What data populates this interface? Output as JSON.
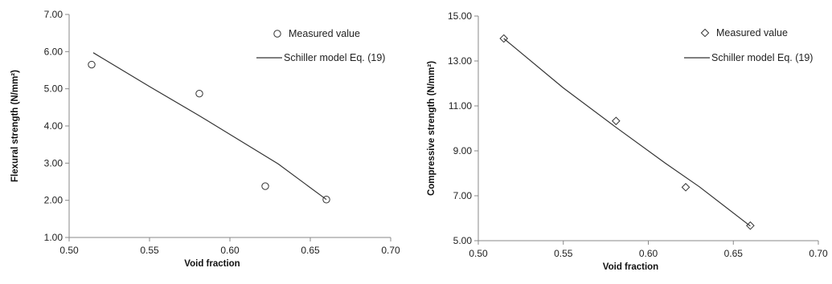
{
  "chart_data": [
    {
      "type": "scatter",
      "title": "",
      "xlabel": "Void fraction",
      "ylabel": "Flexural strength (N/mm²)",
      "xlim": [
        0.5,
        0.7
      ],
      "ylim": [
        1.0,
        7.0
      ],
      "xticks": [
        "0.50",
        "0.55",
        "0.60",
        "0.65",
        "0.70"
      ],
      "yticks": [
        "1.00",
        "2.00",
        "3.00",
        "4.00",
        "5.00",
        "6.00",
        "7.00"
      ],
      "x_tick_values": [
        0.5,
        0.55,
        0.6,
        0.65,
        0.7
      ],
      "y_tick_values": [
        1,
        2,
        3,
        4,
        5,
        6,
        7
      ],
      "grid": false,
      "legend_position": "top-right",
      "series": [
        {
          "name": "Measured value",
          "kind": "marker",
          "marker": "circle",
          "points": [
            [
              0.514,
              5.65
            ],
            [
              0.581,
              4.87
            ],
            [
              0.622,
              2.38
            ],
            [
              0.66,
              2.02
            ]
          ]
        },
        {
          "name": "Schiller model Eq. (19)",
          "kind": "line",
          "points": [
            [
              0.515,
              5.97
            ],
            [
              0.55,
              5.06
            ],
            [
              0.58,
              4.3
            ],
            [
              0.61,
              3.51
            ],
            [
              0.63,
              2.98
            ],
            [
              0.66,
              2.02
            ]
          ]
        }
      ]
    },
    {
      "type": "scatter",
      "title": "",
      "xlabel": "Void fraction",
      "ylabel": "Compressive strength (N/mm²)",
      "xlim": [
        0.5,
        0.7
      ],
      "ylim": [
        5.0,
        15.0
      ],
      "xticks": [
        "0.50",
        "0.55",
        "0.60",
        "0.65",
        "0.70"
      ],
      "yticks": [
        "5.00",
        "7.00",
        "9.00",
        "11.00",
        "13.00",
        "15.00"
      ],
      "x_tick_values": [
        0.5,
        0.55,
        0.6,
        0.65,
        0.7
      ],
      "y_tick_values": [
        5,
        7,
        9,
        11,
        13,
        15
      ],
      "grid": false,
      "legend_position": "top-right",
      "series": [
        {
          "name": "Measured value",
          "kind": "marker",
          "marker": "diamond",
          "points": [
            [
              0.515,
              14.0
            ],
            [
              0.581,
              10.33
            ],
            [
              0.622,
              7.38
            ],
            [
              0.66,
              5.67
            ]
          ]
        },
        {
          "name": "Schiller model Eq. (19)",
          "kind": "line",
          "points": [
            [
              0.515,
              14.0
            ],
            [
              0.55,
              11.8
            ],
            [
              0.58,
              10.1
            ],
            [
              0.61,
              8.45
            ],
            [
              0.63,
              7.4
            ],
            [
              0.66,
              5.65
            ]
          ]
        }
      ]
    }
  ]
}
